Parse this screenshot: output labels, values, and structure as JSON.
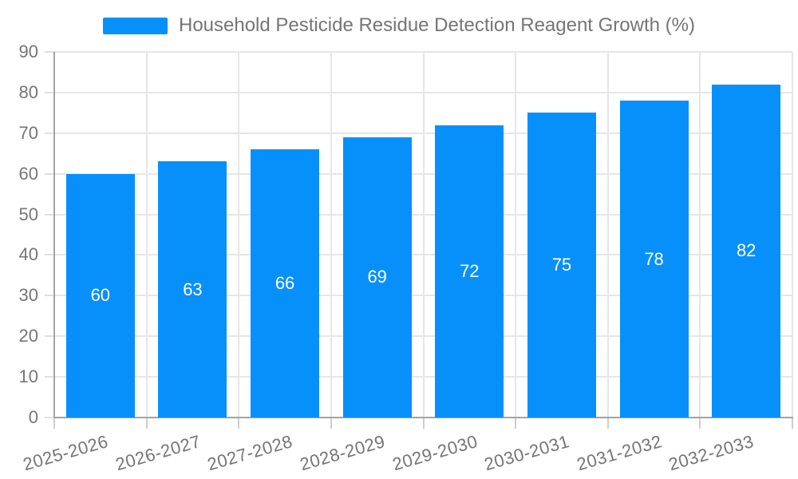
{
  "chart_data": {
    "type": "bar",
    "title": "Household Pesticide Residue Detection Reagent Growth (%)",
    "legend": {
      "position": "top",
      "label": "Household Pesticide Residue Detection Reagent Growth (%)"
    },
    "categories": [
      "2025-2026",
      "2026-2027",
      "2027-2028",
      "2028-2029",
      "2029-2030",
      "2030-2031",
      "2031-2032",
      "2032-2033"
    ],
    "values": [
      60,
      63,
      66,
      69,
      72,
      75,
      78,
      82
    ],
    "value_labels": [
      "60",
      "63",
      "66",
      "69",
      "72",
      "75",
      "78",
      "82"
    ],
    "ytick_labels": [
      "0",
      "10",
      "20",
      "30",
      "40",
      "50",
      "60",
      "70",
      "80",
      "90"
    ],
    "ylim": [
      0,
      90
    ],
    "xlabel": "",
    "ylabel": "",
    "grid": true,
    "legend_position": "top",
    "colors": {
      "bar": "#0890fa",
      "value_label": "#ffffff",
      "text": "#757575",
      "grid_line": "#e6e6e6",
      "axis_line": "#a3a3a3"
    }
  }
}
